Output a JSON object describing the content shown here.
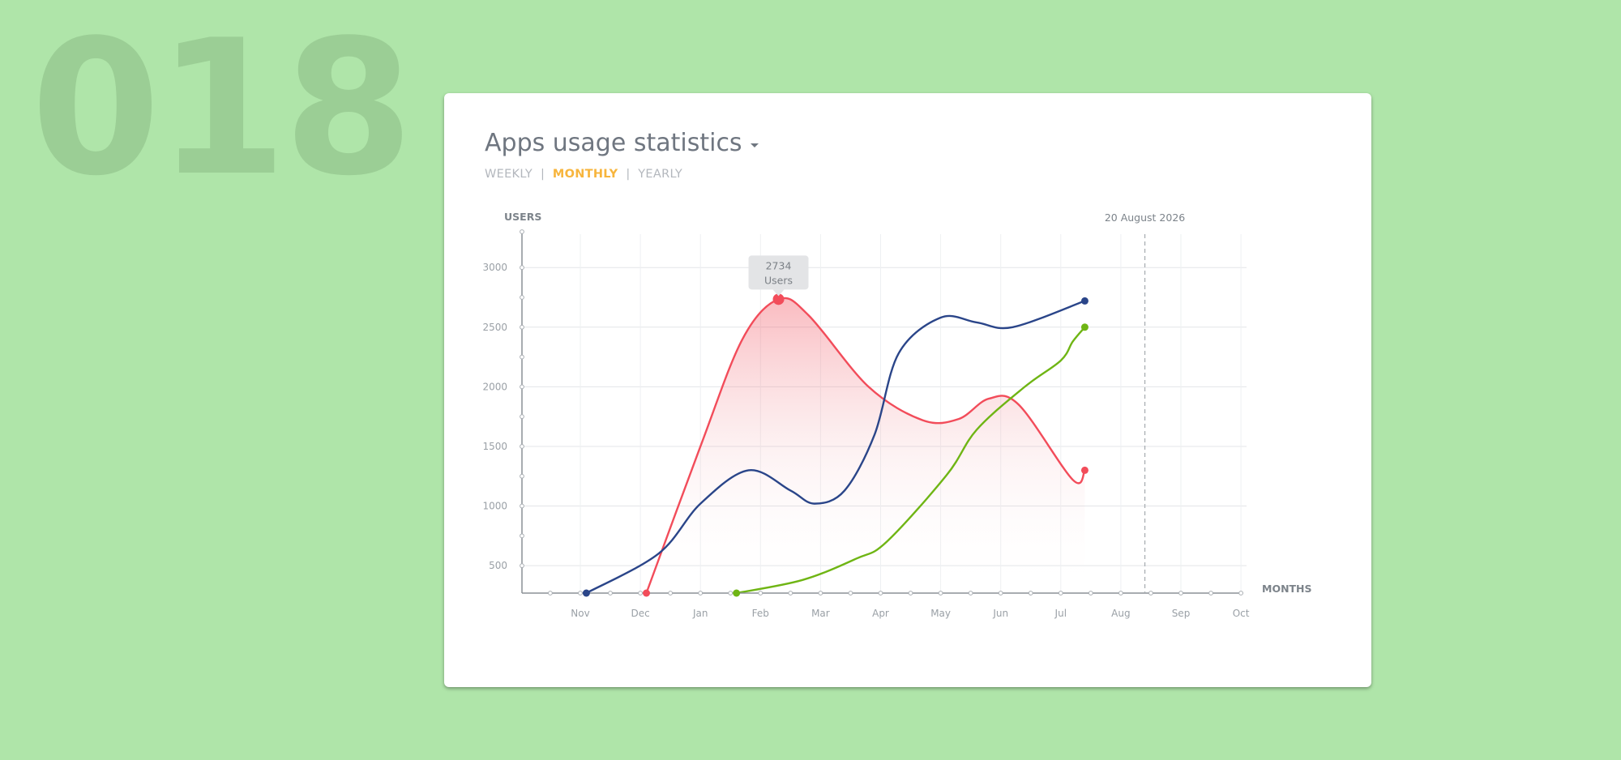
{
  "page": {
    "shot_number": "018"
  },
  "card": {
    "title": "Apps usage statistics",
    "tabs": [
      {
        "label": "WEEKLY",
        "active": false
      },
      {
        "label": "MONTHLY",
        "active": true
      },
      {
        "label": "YEARLY",
        "active": false
      }
    ],
    "separator": "|"
  },
  "colors": {
    "background": "#afe5a9",
    "accent": "#f7b53d",
    "series_red": "#f24c5a",
    "series_blue": "#2a4589",
    "series_green": "#6fb514"
  },
  "chart_data": {
    "type": "line",
    "ylabel": "USERS",
    "xlabel": "MONTHS",
    "categories": [
      "Nov",
      "Dec",
      "Jan",
      "Feb",
      "Mar",
      "Apr",
      "May",
      "Jun",
      "Jul",
      "Aug",
      "Sep",
      "Oct"
    ],
    "yticks": [
      500,
      1000,
      1500,
      2000,
      2500,
      3000
    ],
    "ylim": [
      270,
      3280
    ],
    "grid": true,
    "marker": {
      "label": "20 August 2026",
      "x": 9.4
    },
    "tooltip": {
      "value": "2734",
      "unit": "Users",
      "x": 3.3,
      "y": 2734
    },
    "series": [
      {
        "color": "#f24c5a",
        "fill": true,
        "points": [
          [
            1.1,
            270
          ],
          [
            2.0,
            1500
          ],
          [
            2.7,
            2400
          ],
          [
            3.3,
            2734
          ],
          [
            3.8,
            2600
          ],
          [
            4.8,
            2000
          ],
          [
            5.7,
            1720
          ],
          [
            6.3,
            1730
          ],
          [
            6.8,
            1900
          ],
          [
            7.3,
            1850
          ],
          [
            8.2,
            1220
          ],
          [
            8.4,
            1300
          ]
        ]
      },
      {
        "color": "#2a4589",
        "fill": false,
        "points": [
          [
            0.1,
            270
          ],
          [
            1.3,
            600
          ],
          [
            2.0,
            1020
          ],
          [
            2.8,
            1300
          ],
          [
            3.5,
            1130
          ],
          [
            3.9,
            1020
          ],
          [
            4.4,
            1130
          ],
          [
            4.9,
            1600
          ],
          [
            5.3,
            2280
          ],
          [
            6.0,
            2580
          ],
          [
            6.6,
            2540
          ],
          [
            7.2,
            2500
          ],
          [
            8.4,
            2720
          ]
        ]
      },
      {
        "color": "#6fb514",
        "fill": false,
        "points": [
          [
            2.6,
            270
          ],
          [
            3.7,
            380
          ],
          [
            4.6,
            560
          ],
          [
            5.1,
            700
          ],
          [
            6.1,
            1260
          ],
          [
            6.6,
            1640
          ],
          [
            7.4,
            2000
          ],
          [
            8.0,
            2220
          ],
          [
            8.2,
            2380
          ],
          [
            8.4,
            2500
          ]
        ]
      }
    ]
  }
}
